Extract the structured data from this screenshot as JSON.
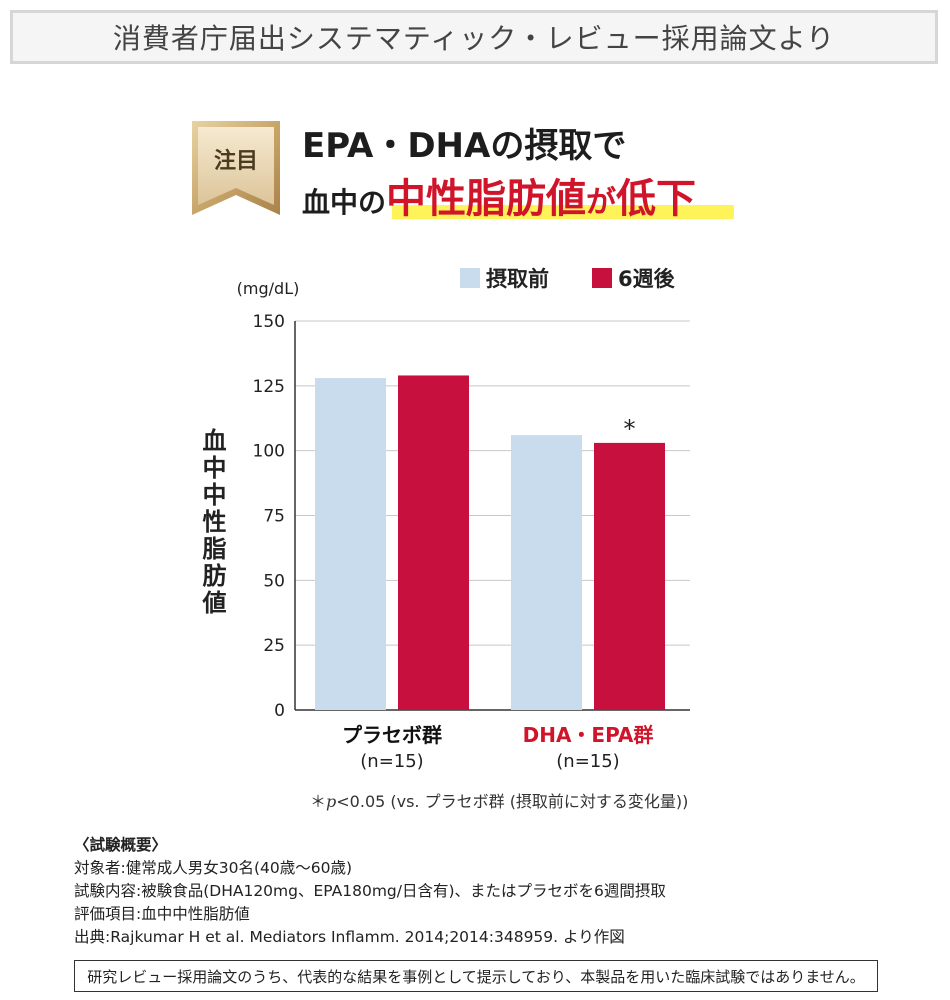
{
  "header": {
    "title": "消費者庁届出システマティック・レビュー採用論文より"
  },
  "badge": {
    "label": "注目"
  },
  "headline": {
    "line1": "EPA・DHAの摂取で",
    "line2_part1": "血中の",
    "line2_part2": "中性脂肪値",
    "line2_part3": "が",
    "line2_part4": "低下"
  },
  "colors": {
    "before": "#c9dced",
    "after": "#c8103f",
    "accent": "#d0152b",
    "highlight": "#fff35a"
  },
  "chart_data": {
    "type": "bar",
    "unit_label": "(mg/dL)",
    "ylabel": "血中中性脂肪値",
    "ylim": [
      0,
      150
    ],
    "yticks": [
      0,
      25,
      50,
      75,
      100,
      125,
      150
    ],
    "categories": [
      "プラセボ群",
      "DHA・EPA群"
    ],
    "category_sublabels": [
      "(n=15)",
      "(n=15)"
    ],
    "series": [
      {
        "name": "摂取前",
        "values": [
          128,
          106
        ]
      },
      {
        "name": "6週後",
        "values": [
          129,
          103
        ]
      }
    ],
    "significance_marker": "*",
    "significance_on": "DHA・EPA群 6週後",
    "legend": "top-right",
    "grid": true
  },
  "footnote": {
    "star": "＊",
    "p": "p",
    "text": "<0.05 (vs. プラセボ群 (摂取前に対する変化量))"
  },
  "summary": {
    "title": "〈試験概要〉",
    "lines": [
      "対象者:健常成人男女30名(40歳〜60歳)",
      "試験内容:被験食品(DHA120mg、EPA180mg/日含有)、またはプラセボを6週間摂取",
      "評価項目:血中中性脂肪値",
      "出典:Rajkumar H et al. Mediators Inflamm. 2014;2014:348959. より作図"
    ]
  },
  "disclaimer": "研究レビュー採用論文のうち、代表的な結果を事例として提示しており、本製品を用いた臨床試験ではありません。"
}
